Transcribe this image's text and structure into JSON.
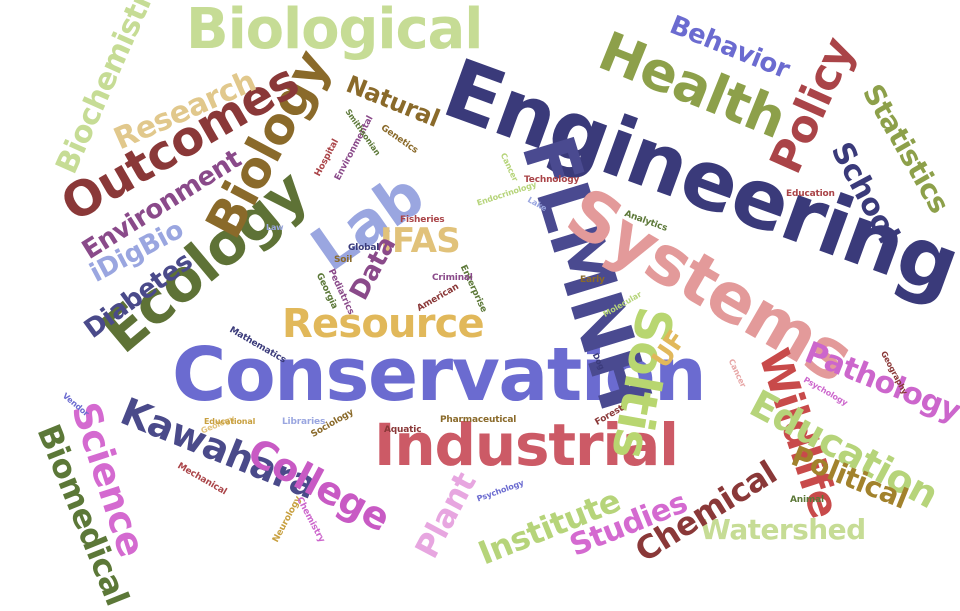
{
  "words": [
    {
      "text": "Engineering",
      "color": "#3a3a7a"
    },
    {
      "text": "Conservation",
      "color": "#6b6bd0"
    },
    {
      "text": "Biological",
      "color": "#c6dc95"
    },
    {
      "text": "FLMNH",
      "color": "#4a4a90"
    },
    {
      "text": "Systems",
      "color": "#e39a9a"
    },
    {
      "text": "Lab",
      "color": "#9aa6e0"
    },
    {
      "text": "Industrial",
      "color": "#cc5a66"
    },
    {
      "text": "Health",
      "color": "#8da04a"
    },
    {
      "text": "Ecology",
      "color": "#5e7236"
    },
    {
      "text": "Biology",
      "color": "#8a6a2a"
    },
    {
      "text": "Outcomes",
      "color": "#8a3838"
    },
    {
      "text": "Soltis",
      "color": "#b8d670"
    },
    {
      "text": "Resource",
      "color": "#e1b85a"
    },
    {
      "text": "Kawahara",
      "color": "#4a4a8a"
    },
    {
      "text": "Wildlife",
      "color": "#c84a4a"
    },
    {
      "text": "Policy",
      "color": "#aa4448"
    },
    {
      "text": "College",
      "color": "#c85ac4"
    },
    {
      "text": "Science",
      "color": "#d46ad0"
    },
    {
      "text": "Education",
      "color": "#b6d47a"
    },
    {
      "text": "Biomedical",
      "color": "#5c7838"
    },
    {
      "text": "Biochemistry",
      "color": "#c6dc95"
    },
    {
      "text": "Behavior",
      "color": "#6b6bd0"
    },
    {
      "text": "School",
      "color": "#3a3a7a"
    },
    {
      "text": "Statistics",
      "color": "#8da04a"
    },
    {
      "text": "Pathology",
      "color": "#cc66cc"
    },
    {
      "text": "Political",
      "color": "#a2822c"
    },
    {
      "text": "Watershed",
      "color": "#c6dc95"
    },
    {
      "text": "Institute",
      "color": "#b6d47a"
    },
    {
      "text": "Studies",
      "color": "#d46ad0"
    },
    {
      "text": "Chemical",
      "color": "#8a3838"
    },
    {
      "text": "Plant",
      "color": "#e7a6e0"
    },
    {
      "text": "Research",
      "color": "#e1c88c"
    },
    {
      "text": "Environment",
      "color": "#8a4a8a"
    },
    {
      "text": "Natural",
      "color": "#8a6a2a"
    },
    {
      "text": "IFAS",
      "color": "#e1c27a"
    },
    {
      "text": "iDigBio",
      "color": "#9aa6e0"
    },
    {
      "text": "Diabetes",
      "color": "#4a4a8a"
    },
    {
      "text": "Data",
      "color": "#8a4a8a"
    },
    {
      "text": "UF",
      "color": "#e1b85a"
    },
    {
      "text": "Technology",
      "color": "#aa4448"
    },
    {
      "text": "Endocrinology",
      "color": "#b6d47a"
    },
    {
      "text": "Law",
      "color": "#9aa6e0"
    },
    {
      "text": "Global",
      "color": "#3a3a7a"
    },
    {
      "text": "Soil",
      "color": "#8a6a2a"
    },
    {
      "text": "Pediatrics",
      "color": "#8a4a8a"
    },
    {
      "text": "Georgia",
      "color": "#5c7838"
    },
    {
      "text": "Fisheries",
      "color": "#aa4448"
    },
    {
      "text": "Enterprise",
      "color": "#5c7838"
    },
    {
      "text": "American",
      "color": "#8a3838"
    },
    {
      "text": "Criminal",
      "color": "#8a4a8a"
    },
    {
      "text": "Analytics",
      "color": "#5c7838"
    },
    {
      "text": "Education",
      "color": "#aa4448"
    },
    {
      "text": "Early",
      "color": "#8a6a2a"
    },
    {
      "text": "Cancer",
      "color": "#b6d47a"
    },
    {
      "text": "Lake",
      "color": "#9aa6e0"
    },
    {
      "text": "Dog",
      "color": "#3a3a7a"
    },
    {
      "text": "Hospital",
      "color": "#aa4448"
    },
    {
      "text": "Environmental",
      "color": "#8a4a8a"
    },
    {
      "text": "Genetics",
      "color": "#8a6a2a"
    },
    {
      "text": "Mathematics",
      "color": "#3a3a7a"
    },
    {
      "text": "Libraries",
      "color": "#9aa6e0"
    },
    {
      "text": "Sociology",
      "color": "#8a6a2a"
    },
    {
      "text": "Aquatic",
      "color": "#8a3838"
    },
    {
      "text": "Pharmaceutical",
      "color": "#8a6a2a"
    },
    {
      "text": "Forest",
      "color": "#8a3838"
    },
    {
      "text": "Psychology",
      "color": "#6b6bd0"
    },
    {
      "text": "Mechanical",
      "color": "#aa4448"
    },
    {
      "text": "Neurology",
      "color": "#c8a040"
    },
    {
      "text": "Chemistry",
      "color": "#cc66cc"
    },
    {
      "text": "Animal",
      "color": "#5c7838"
    },
    {
      "text": "Geography",
      "color": "#8a3838"
    },
    {
      "text": "Geology",
      "color": "#e1c27a"
    },
    {
      "text": "Molecular",
      "color": "#b6d47a"
    },
    {
      "text": "Educational",
      "color": "#c8a040"
    },
    {
      "text": "Cancer",
      "color": "#e7a6a6"
    },
    {
      "text": "Vendor",
      "color": "#6b6bd0"
    },
    {
      "text": "Psychology",
      "color": "#cc66cc"
    },
    {
      "text": "Smithsonian",
      "color": "#5c7838"
    }
  ]
}
